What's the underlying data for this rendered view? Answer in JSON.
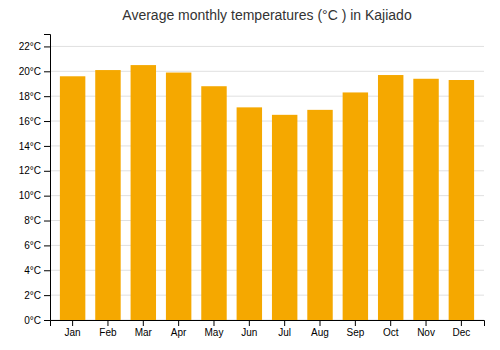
{
  "chart_data": {
    "type": "bar",
    "title": "Average monthly temperatures (°C ) in Kajiado",
    "categories": [
      "Jan",
      "Feb",
      "Mar",
      "Apr",
      "May",
      "Jun",
      "Jul",
      "Aug",
      "Sep",
      "Oct",
      "Nov",
      "Dec"
    ],
    "values": [
      19.6,
      20.1,
      20.5,
      19.9,
      18.8,
      17.1,
      16.5,
      16.9,
      18.3,
      19.7,
      19.4,
      19.3
    ],
    "color": "#F5A800",
    "ylim": [
      0,
      23
    ],
    "yticks": [
      {
        "value": 0,
        "label": "0°C"
      },
      {
        "value": 2,
        "label": "2°C"
      },
      {
        "value": 4,
        "label": "4°C"
      },
      {
        "value": 6,
        "label": "6°C"
      },
      {
        "value": 8,
        "label": "8°C"
      },
      {
        "value": 10,
        "label": "10°C"
      },
      {
        "value": 12,
        "label": "12°C"
      },
      {
        "value": 14,
        "label": "14°C"
      },
      {
        "value": 16,
        "label": "16°C"
      },
      {
        "value": 18,
        "label": "18°C"
      },
      {
        "value": 20,
        "label": "20°C"
      },
      {
        "value": 22,
        "label": "22°C"
      }
    ],
    "grid": true
  }
}
